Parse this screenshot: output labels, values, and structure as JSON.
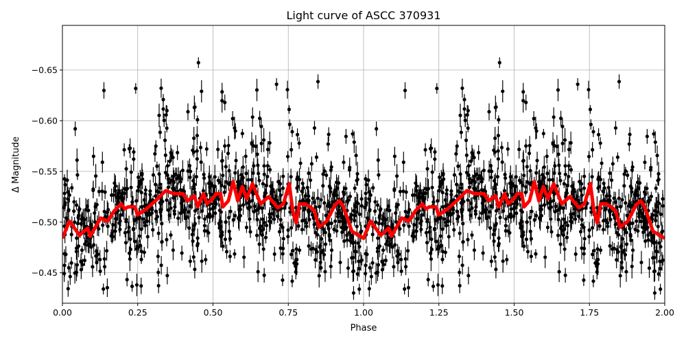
{
  "chart_data": {
    "type": "scatter",
    "title": "Light curve of ASCC 370931",
    "xlabel": "Phase",
    "ylabel": "Δ Magnitude",
    "xlim": [
      0,
      2
    ],
    "ylim": [
      -0.694,
      -0.42
    ],
    "y_inverted": true,
    "grid": true,
    "x_ticks": [
      "0.00",
      "0.25",
      "0.50",
      "0.75",
      "1.00",
      "1.25",
      "1.50",
      "1.75",
      "2.00"
    ],
    "x_tick_values": [
      0,
      0.25,
      0.5,
      0.75,
      1.0,
      1.25,
      1.5,
      1.75,
      2.0
    ],
    "y_ticks": [
      "−0.65",
      "−0.60",
      "−0.55",
      "−0.50",
      "−0.45"
    ],
    "y_tick_values": [
      -0.65,
      -0.6,
      -0.55,
      -0.5,
      -0.45
    ],
    "colors": {
      "points": "#000000",
      "binned_curve": "#ff0000",
      "grid": "#b0b0b0"
    },
    "series": [
      {
        "type": "errorbar-scatter"
      },
      {
        "type": "line",
        "x": [
          0.0,
          0.023,
          0.057,
          0.084,
          0.092,
          0.127,
          0.15,
          0.172,
          0.195,
          0.207,
          0.218,
          0.241,
          0.249,
          0.279,
          0.309,
          0.343,
          0.37,
          0.4,
          0.415,
          0.438,
          0.449,
          0.468,
          0.48,
          0.499,
          0.51,
          0.525,
          0.533,
          0.551,
          0.567,
          0.582,
          0.597,
          0.612,
          0.631,
          0.658,
          0.685,
          0.715,
          0.734,
          0.753,
          0.765,
          0.776,
          0.787,
          0.806,
          0.822,
          0.837,
          0.852,
          0.878,
          0.905,
          0.92,
          0.932,
          0.961,
          1.0,
          1.023,
          1.057,
          1.084,
          1.092,
          1.127,
          1.15,
          1.172,
          1.195,
          1.207,
          1.218,
          1.241,
          1.249,
          1.279,
          1.309,
          1.343,
          1.37,
          1.4,
          1.415,
          1.438,
          1.449,
          1.468,
          1.48,
          1.499,
          1.51,
          1.525,
          1.533,
          1.551,
          1.567,
          1.582,
          1.597,
          1.612,
          1.631,
          1.658,
          1.685,
          1.715,
          1.734,
          1.753,
          1.765,
          1.776,
          1.787,
          1.806,
          1.822,
          1.837,
          1.852,
          1.878,
          1.905,
          1.92,
          1.932,
          1.961,
          2.0
        ],
        "y": [
          -0.484,
          -0.501,
          -0.487,
          -0.494,
          -0.486,
          -0.504,
          -0.501,
          -0.511,
          -0.518,
          -0.513,
          -0.515,
          -0.515,
          -0.507,
          -0.513,
          -0.521,
          -0.531,
          -0.528,
          -0.528,
          -0.521,
          -0.526,
          -0.515,
          -0.528,
          -0.518,
          -0.523,
          -0.528,
          -0.528,
          -0.515,
          -0.521,
          -0.54,
          -0.521,
          -0.535,
          -0.523,
          -0.538,
          -0.518,
          -0.525,
          -0.514,
          -0.518,
          -0.538,
          -0.511,
          -0.499,
          -0.518,
          -0.518,
          -0.515,
          -0.511,
          -0.495,
          -0.501,
          -0.517,
          -0.521,
          -0.516,
          -0.491,
          -0.484,
          -0.501,
          -0.487,
          -0.494,
          -0.486,
          -0.504,
          -0.501,
          -0.511,
          -0.518,
          -0.513,
          -0.515,
          -0.515,
          -0.507,
          -0.513,
          -0.521,
          -0.531,
          -0.528,
          -0.528,
          -0.521,
          -0.526,
          -0.515,
          -0.528,
          -0.518,
          -0.523,
          -0.528,
          -0.528,
          -0.515,
          -0.521,
          -0.54,
          -0.521,
          -0.535,
          -0.523,
          -0.538,
          -0.518,
          -0.525,
          -0.514,
          -0.518,
          -0.538,
          -0.511,
          -0.499,
          -0.518,
          -0.518,
          -0.515,
          -0.511,
          -0.495,
          -0.501,
          -0.517,
          -0.521,
          -0.516,
          -0.491,
          -0.484
        ]
      }
    ]
  }
}
